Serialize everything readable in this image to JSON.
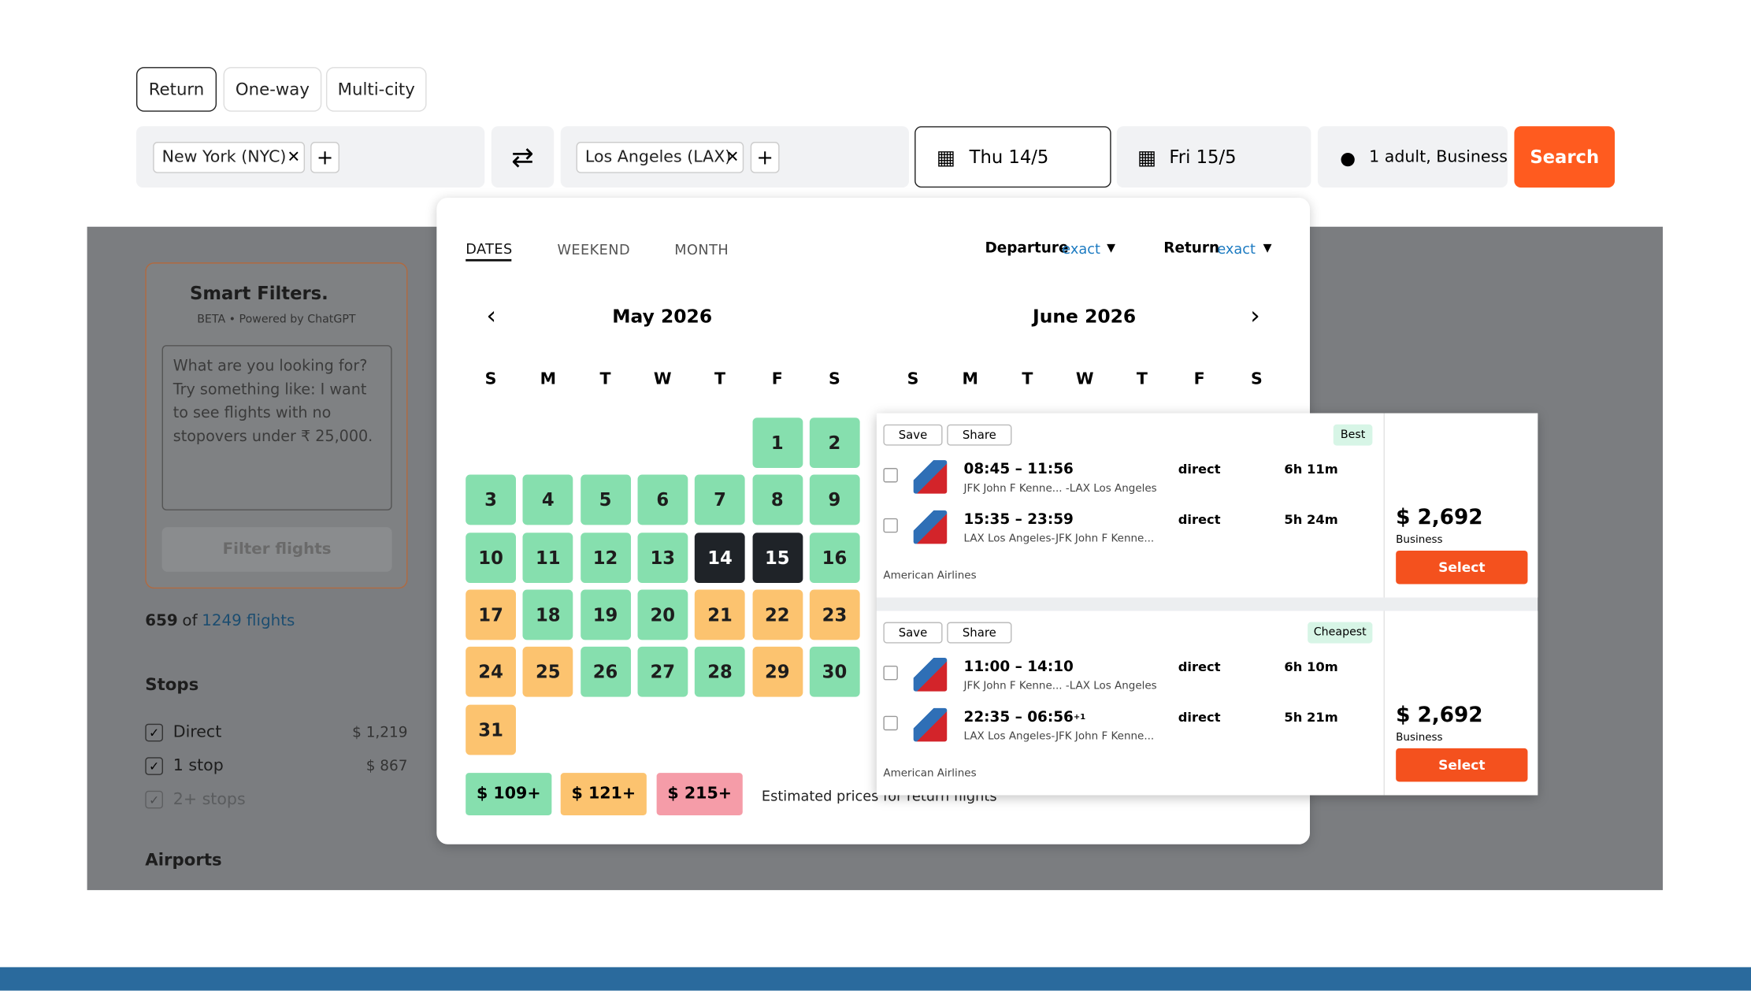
{
  "trip_types": [
    "Return",
    "One-way",
    "Multi-city"
  ],
  "search": {
    "origin": "New York (NYC)",
    "destination": "Los Angeles (LAX)",
    "depart": "Thu 14/5",
    "return": "Fri 15/5",
    "travellers": "1 adult, Business",
    "button": "Search"
  },
  "sidebar": {
    "smart_filters": {
      "title": "Smart Filters.",
      "subtitle": "BETA • Powered by ChatGPT",
      "placeholder": "What are you looking for? Try something like: I want to see flights with no stopovers under ₹ 25,000.",
      "button": "Filter flights"
    },
    "count": "659",
    "count_of": "of",
    "count_total": "1249 flights",
    "stops_title": "Stops",
    "stops": [
      {
        "label": "Direct",
        "price": "$ 1,219"
      },
      {
        "label": "1 stop",
        "price": "$ 867"
      },
      {
        "label": "2+ stops"
      }
    ],
    "airports_title": "Airports"
  },
  "calendar": {
    "tabs": [
      "DATES",
      "WEEKEND",
      "MONTH"
    ],
    "departure": "Departure",
    "departure_mode": "exact",
    "return": "Return",
    "return_mode": "exact",
    "weekdays": [
      "S",
      "M",
      "T",
      "W",
      "T",
      "F",
      "S"
    ],
    "months": [
      {
        "name": "May 2026",
        "offset": 5,
        "days": [
          {
            "day": 1,
            "level": "low"
          },
          {
            "day": 2,
            "level": "low"
          },
          {
            "day": 3,
            "level": "low"
          },
          {
            "day": 4,
            "level": "low"
          },
          {
            "day": 5,
            "level": "low"
          },
          {
            "day": 6,
            "level": "low"
          },
          {
            "day": 7,
            "level": "low"
          },
          {
            "day": 8,
            "level": "low"
          },
          {
            "day": 9,
            "level": "low"
          },
          {
            "day": 10,
            "level": "low"
          },
          {
            "day": 11,
            "level": "low"
          },
          {
            "day": 12,
            "level": "low"
          },
          {
            "day": 13,
            "level": "low"
          },
          {
            "day": 14,
            "level": "selected"
          },
          {
            "day": 15,
            "level": "selected"
          },
          {
            "day": 16,
            "level": "low"
          },
          {
            "day": 17,
            "level": "mid"
          },
          {
            "day": 18,
            "level": "low"
          },
          {
            "day": 19,
            "level": "low"
          },
          {
            "day": 20,
            "level": "low"
          },
          {
            "day": 21,
            "level": "mid"
          },
          {
            "day": 22,
            "level": "mid"
          },
          {
            "day": 23,
            "level": "mid"
          },
          {
            "day": 24,
            "level": "mid"
          },
          {
            "day": 25,
            "level": "mid"
          },
          {
            "day": 26,
            "level": "low"
          },
          {
            "day": 27,
            "level": "low"
          },
          {
            "day": 28,
            "level": "low"
          },
          {
            "day": 29,
            "level": "mid"
          },
          {
            "day": 30,
            "level": "low"
          },
          {
            "day": 31,
            "level": "mid"
          }
        ]
      },
      {
        "name": "June 2026"
      }
    ],
    "legend": [
      {
        "label": "$ 109+",
        "level": "low"
      },
      {
        "label": "$ 121+",
        "level": "mid"
      },
      {
        "label": "$ 215+",
        "level": "high"
      }
    ],
    "note": "Estimated prices for return flights"
  },
  "results": {
    "save": "Save",
    "share": "Share",
    "cards": [
      {
        "tag": "Best",
        "airline": "American Airlines",
        "price": "$ 2,692",
        "cabin": "Business",
        "select": "Select",
        "legs": [
          {
            "times": "08:45 – 11:56",
            "route": "JFK John F Kenne... -LAX Los Angeles",
            "stops": "direct",
            "duration": "6h 11m"
          },
          {
            "times": "15:35 – 23:59",
            "route": "LAX Los Angeles-JFK John F Kenne...",
            "stops": "direct",
            "duration": "5h 24m"
          }
        ]
      },
      {
        "tag": "Cheapest",
        "airline": "American Airlines",
        "price": "$ 2,692",
        "cabin": "Business",
        "select": "Select",
        "legs": [
          {
            "times": "11:00 – 14:10",
            "route": "JFK John F Kenne... -LAX Los Angeles",
            "stops": "direct",
            "duration": "6h 10m"
          },
          {
            "times": "22:35 – 06:56",
            "day_offset": "+1",
            "route": "LAX Los Angeles-JFK John F Kenne...",
            "stops": "direct",
            "duration": "5h 21m"
          }
        ]
      }
    ]
  }
}
